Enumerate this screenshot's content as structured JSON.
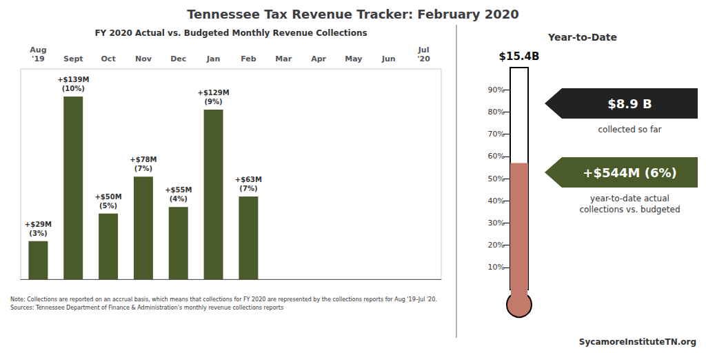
{
  "chart_data": [
    {
      "type": "bar",
      "title": "Tennessee Tax Revenue Tracker: February 2020",
      "subtitle": "FY 2020 Actual vs. Budgeted Monthly Revenue Collections",
      "categories": [
        "Aug\n'19",
        "Sept",
        "Oct",
        "Nov",
        "Dec",
        "Jan",
        "Feb",
        "Mar",
        "Apr",
        "May",
        "Jun",
        "Jul\n'20"
      ],
      "values": [
        29,
        139,
        50,
        78,
        55,
        129,
        63,
        0,
        0,
        0,
        0,
        0
      ],
      "value_labels": [
        "+$29M\n(3%)",
        "+$139M\n(10%)",
        "+$50M\n(5%)",
        "+$78M\n(7%)",
        "+$55M\n(4%)",
        "+$129M\n(9%)",
        "+$63M\n(7%)",
        null,
        null,
        null,
        null,
        null
      ],
      "data_labels": true,
      "color": "#4A5A2A",
      "ylim": [
        0,
        160
      ],
      "tick_labels": "x",
      "grid": false,
      "annotations": [
        "Note: Collections are reported on an accrual basis, which means that collections for FY 2020 are represented by the collections reports for Aug '19–Jul '20.\nSources: Tennessee Department of Finance & Administration's monthly revenue collections reports",
        "SycamoreInstituteTN.org"
      ]
    },
    {
      "type": "thermometer",
      "title": "Year-to-Date",
      "values": [
        0.57
      ],
      "color": "#C47A6A",
      "ylim": [
        0,
        1
      ],
      "yticks": [
        {
          "value": 0.9,
          "label": "90%"
        },
        {
          "value": 0.8,
          "label": "80%"
        },
        {
          "value": 0.7,
          "label": "70%"
        },
        {
          "value": 0.6,
          "label": "60%"
        },
        {
          "value": 0.5,
          "label": "50%"
        },
        {
          "value": 0.4,
          "label": "40%"
        },
        {
          "value": 0.3,
          "label": "30%"
        },
        {
          "value": 0.2,
          "label": "20%"
        },
        {
          "value": 0.1,
          "label": "10%"
        }
      ],
      "tick_labels": "y",
      "grid": false,
      "annotations": [
        "$15.4B",
        "$8.9 B",
        "collected so far",
        "+$544M (6%)",
        "year-to-date actual\ncollections vs. budgeted"
      ]
    }
  ]
}
